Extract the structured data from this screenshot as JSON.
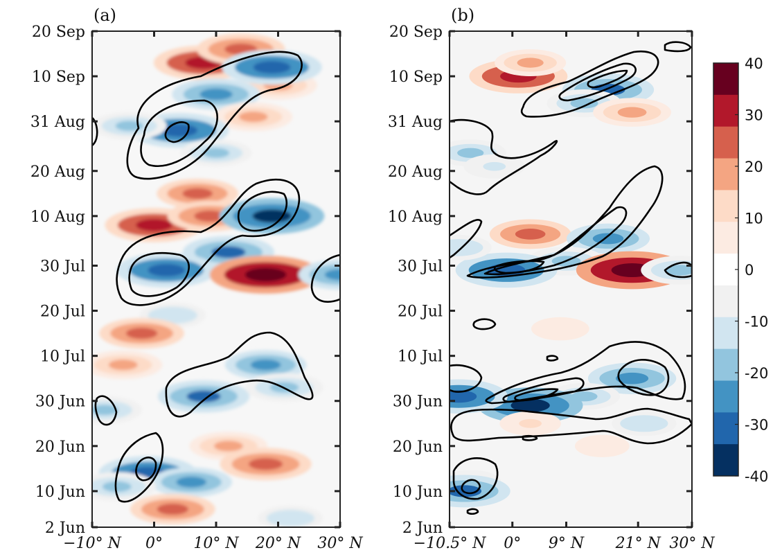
{
  "chart_data": [
    {
      "type": "heatmap",
      "panel_label": "(a)",
      "y_ticks": [
        "20 Sep",
        "10 Sep",
        "31 Aug",
        "20 Aug",
        "10 Aug",
        "30 Jul",
        "20 Jul",
        "10 Jul",
        "30 Jun",
        "20 Jun",
        "10 Jun",
        "2 Jun"
      ],
      "x_ticks": [
        "−10° N",
        "0°",
        "10° N",
        "20° N",
        "30° N"
      ],
      "x_tick_values": [
        -10,
        0,
        10,
        20,
        30
      ],
      "xlim": [
        -10,
        30
      ],
      "y_range_dates": [
        "2 Jun",
        "20 Sep"
      ],
      "overlay": "contours",
      "field_blobs": [
        {
          "lat": 8,
          "date": "13 Sep",
          "value": 35
        },
        {
          "lat": 14,
          "date": "16 Sep",
          "value": 28
        },
        {
          "lat": 20,
          "date": "8 Sep",
          "value": 22
        },
        {
          "lat": 19,
          "date": "12 Sep",
          "value": -35
        },
        {
          "lat": 10,
          "date": "6 Sep",
          "value": -28
        },
        {
          "lat": 16,
          "date": "1 Sep",
          "value": 22
        },
        {
          "lat": 4,
          "date": "29 Aug",
          "value": -35
        },
        {
          "lat": -4,
          "date": "30 Aug",
          "value": -20
        },
        {
          "lat": 10,
          "date": "24 Aug",
          "value": -18
        },
        {
          "lat": 7,
          "date": "15 Aug",
          "value": 24
        },
        {
          "lat": 0,
          "date": "8 Aug",
          "value": 34
        },
        {
          "lat": 9,
          "date": "10 Aug",
          "value": 26
        },
        {
          "lat": 19,
          "date": "10 Aug",
          "value": -38
        },
        {
          "lat": 12,
          "date": "2 Aug",
          "value": -30
        },
        {
          "lat": 2,
          "date": "29 Jul",
          "value": -35
        },
        {
          "lat": 18,
          "date": "28 Jul",
          "value": 42
        },
        {
          "lat": 30,
          "date": "28 Jul",
          "value": -25
        },
        {
          "lat": 3,
          "date": "19 Jul",
          "value": -15
        },
        {
          "lat": -2,
          "date": "15 Jul",
          "value": 26
        },
        {
          "lat": 18,
          "date": "8 Jul",
          "value": -24
        },
        {
          "lat": -5,
          "date": "8 Jul",
          "value": 22
        },
        {
          "lat": 8,
          "date": "1 Jul",
          "value": -30
        },
        {
          "lat": 21,
          "date": "3 Jul",
          "value": -22
        },
        {
          "lat": -8,
          "date": "28 Jun",
          "value": -20
        },
        {
          "lat": 12,
          "date": "20 Jun",
          "value": 22
        },
        {
          "lat": 18,
          "date": "16 Jun",
          "value": 30
        },
        {
          "lat": -1,
          "date": "14 Jun",
          "value": -34
        },
        {
          "lat": 6,
          "date": "12 Jun",
          "value": -24
        },
        {
          "lat": 3,
          "date": "6 Jun",
          "value": 26
        },
        {
          "lat": 22,
          "date": "4 Jun",
          "value": -14
        },
        {
          "lat": -6,
          "date": "11 Jun",
          "value": -22
        }
      ]
    },
    {
      "type": "heatmap",
      "panel_label": "(b)",
      "y_ticks": [
        "20 Sep",
        "10 Sep",
        "31 Aug",
        "20 Aug",
        "10 Aug",
        "30 Jul",
        "20 Jul",
        "10 Jul",
        "30 Jun",
        "20 Jun",
        "10 Jun",
        "2 Jun"
      ],
      "x_ticks": [
        "−10.5° N",
        "0°",
        "9° N",
        "21° N",
        "30° N"
      ],
      "x_tick_values": [
        -10.5,
        0,
        9,
        21,
        30
      ],
      "xlim": [
        -10.5,
        30
      ],
      "y_range_dates": [
        "2 Jun",
        "20 Sep"
      ],
      "overlay": "contours",
      "colorbar": {
        "ticks": [
          "40",
          "30",
          "20",
          "10",
          "0",
          "-10",
          "-20",
          "-30",
          "-40"
        ],
        "range": [
          -40,
          40
        ],
        "colors_top_to_bottom": [
          "#67001f",
          "#b2182b",
          "#d6604d",
          "#f4a582",
          "#fddbc7",
          "#fcebe2",
          "#ffffff",
          "#f1f1f1",
          "#d1e5f0",
          "#92c5de",
          "#4393c3",
          "#2166ac",
          "#053061"
        ]
      },
      "field_blobs": [
        {
          "lat": 1,
          "date": "10 Sep",
          "value": 34
        },
        {
          "lat": 3,
          "date": "13 Sep",
          "value": 18
        },
        {
          "lat": 16,
          "date": "7 Sep",
          "value": -30
        },
        {
          "lat": 12,
          "date": "4 Sep",
          "value": -20
        },
        {
          "lat": 20,
          "date": "2 Sep",
          "value": 22
        },
        {
          "lat": -7,
          "date": "24 Aug",
          "value": -18
        },
        {
          "lat": -3,
          "date": "21 Aug",
          "value": -12
        },
        {
          "lat": 3,
          "date": "6 Aug",
          "value": 24
        },
        {
          "lat": 16,
          "date": "5 Aug",
          "value": -25
        },
        {
          "lat": 9,
          "date": "31 Jul",
          "value": -22
        },
        {
          "lat": -1,
          "date": "29 Jul",
          "value": -36
        },
        {
          "lat": 20,
          "date": "29 Jul",
          "value": 42
        },
        {
          "lat": 28,
          "date": "29 Jul",
          "value": -22
        },
        {
          "lat": -9,
          "date": "3 Aug",
          "value": -15
        },
        {
          "lat": 20,
          "date": "5 Jul",
          "value": -28
        },
        {
          "lat": 12,
          "date": "1 Jul",
          "value": -18
        },
        {
          "lat": 3,
          "date": "29 Jun",
          "value": -38
        },
        {
          "lat": -9,
          "date": "1 Jul",
          "value": -34
        },
        {
          "lat": 22,
          "date": "25 Jun",
          "value": -14
        },
        {
          "lat": -7,
          "date": "12 Jun",
          "value": -12
        },
        {
          "lat": -8,
          "date": "10 Jun",
          "value": -30
        },
        {
          "lat": 8,
          "date": "16 Jul",
          "value": 10
        },
        {
          "lat": 3,
          "date": "25 Jun",
          "value": 12
        },
        {
          "lat": 15,
          "date": "20 Jun",
          "value": 8
        }
      ]
    }
  ]
}
